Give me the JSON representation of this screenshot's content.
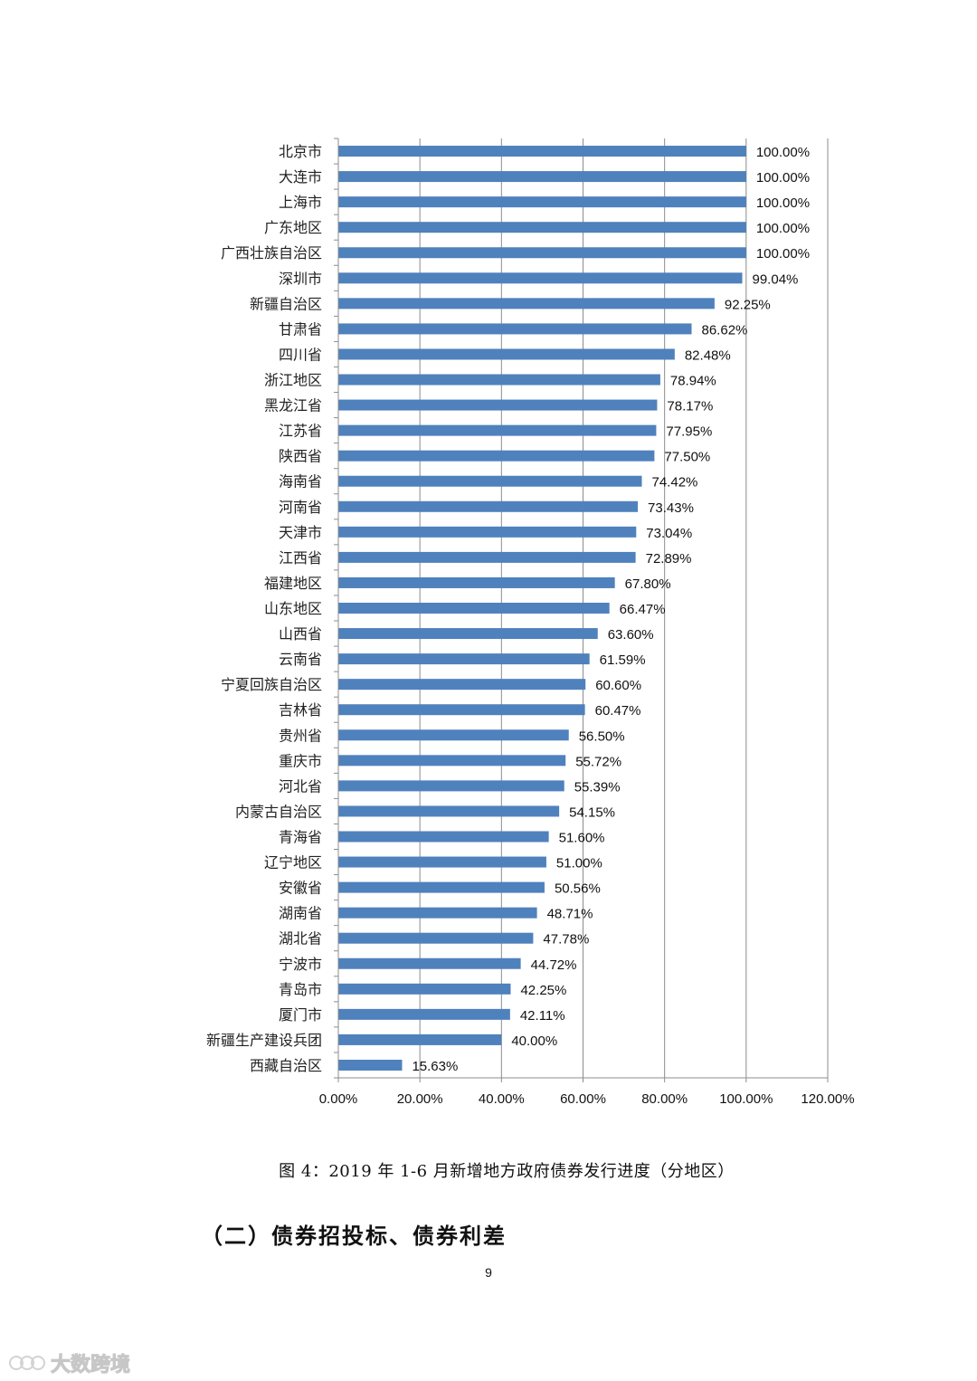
{
  "chart_data": {
    "type": "bar",
    "orientation": "horizontal",
    "categories": [
      "北京市",
      "大连市",
      "上海市",
      "广东地区",
      "广西壮族自治区",
      "深圳市",
      "新疆自治区",
      "甘肃省",
      "四川省",
      "浙江地区",
      "黑龙江省",
      "江苏省",
      "陕西省",
      "海南省",
      "河南省",
      "天津市",
      "江西省",
      "福建地区",
      "山东地区",
      "山西省",
      "云南省",
      "宁夏回族自治区",
      "吉林省",
      "贵州省",
      "重庆市",
      "河北省",
      "内蒙古自治区",
      "青海省",
      "辽宁地区",
      "安徽省",
      "湖南省",
      "湖北省",
      "宁波市",
      "青岛市",
      "厦门市",
      "新疆生产建设兵团",
      "西藏自治区"
    ],
    "values": [
      100.0,
      100.0,
      100.0,
      100.0,
      100.0,
      99.04,
      92.25,
      86.62,
      82.48,
      78.94,
      78.17,
      77.95,
      77.5,
      74.42,
      73.43,
      73.04,
      72.89,
      67.8,
      66.47,
      63.6,
      61.59,
      60.6,
      60.47,
      56.5,
      55.72,
      55.39,
      54.15,
      51.6,
      51.0,
      50.56,
      48.71,
      47.78,
      44.72,
      42.25,
      42.11,
      40.0,
      15.63
    ],
    "value_labels": [
      "100.00%",
      "100.00%",
      "100.00%",
      "100.00%",
      "100.00%",
      "99.04%",
      "92.25%",
      "86.62%",
      "82.48%",
      "78.94%",
      "78.17%",
      "77.95%",
      "77.50%",
      "74.42%",
      "73.43%",
      "73.04%",
      "72.89%",
      "67.80%",
      "66.47%",
      "63.60%",
      "61.59%",
      "60.60%",
      "60.47%",
      "56.50%",
      "55.72%",
      "55.39%",
      "54.15%",
      "51.60%",
      "51.00%",
      "50.56%",
      "48.71%",
      "47.78%",
      "44.72%",
      "42.25%",
      "42.11%",
      "40.00%",
      "15.63%"
    ],
    "xlim": [
      0,
      120
    ],
    "x_ticks": [
      0,
      20,
      40,
      60,
      80,
      100,
      120
    ],
    "x_tick_labels": [
      "0.00%",
      "20.00%",
      "40.00%",
      "60.00%",
      "80.00%",
      "100.00%",
      "120.00%"
    ],
    "vertical_gridlines": true,
    "bar_color": "#4f81bd",
    "legend": "none"
  },
  "caption": "图 4：2019 年 1-6 月新增地方政府债券发行进度（分地区）",
  "section_heading": "（二）债券招投标、债券利差",
  "page_number": "9",
  "watermark_text": "大数跨境"
}
